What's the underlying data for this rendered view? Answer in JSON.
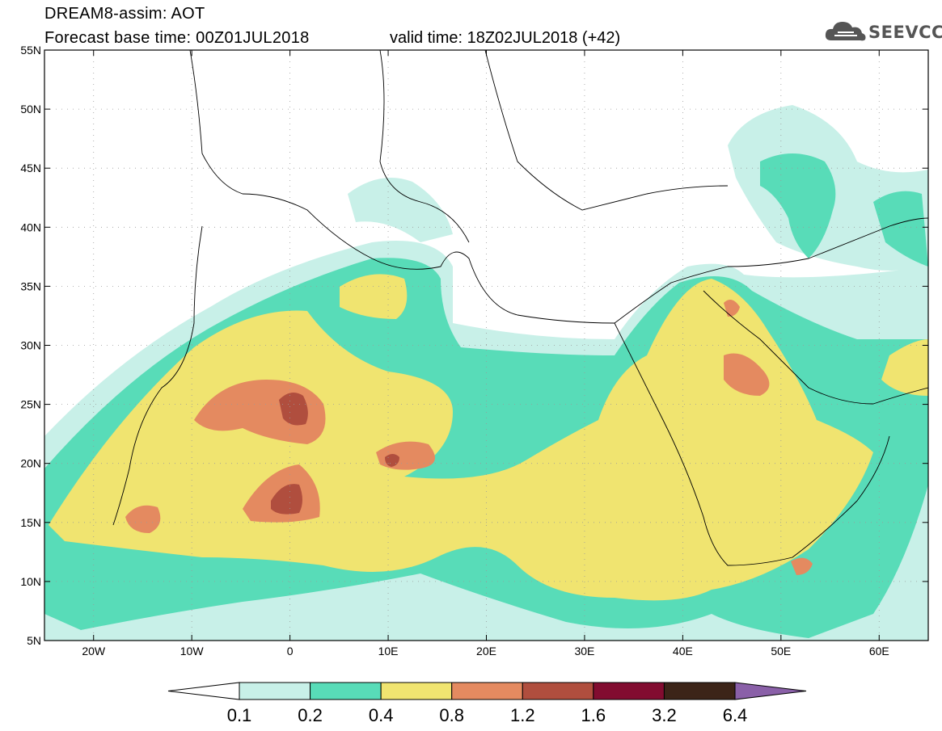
{
  "title": {
    "line1": "DREAM8-assim: AOT",
    "line2": "Forecast base time: 00Z01JUL2018",
    "line3": "valid time: 18Z02JUL2018 (+42)"
  },
  "brand": {
    "name": "SEEVCCC",
    "icon": "cloud-icon"
  },
  "map": {
    "lon_range": [
      -25,
      65
    ],
    "lat_range": [
      5,
      55
    ],
    "lat_ticks": [
      "5N",
      "10N",
      "15N",
      "20N",
      "25N",
      "30N",
      "35N",
      "40N",
      "45N",
      "50N",
      "55N"
    ],
    "lon_ticks": [
      "20W",
      "10W",
      "0",
      "10E",
      "20E",
      "30E",
      "40E",
      "50E",
      "60E"
    ],
    "grid": true
  },
  "colorbar": {
    "labels": [
      "0.1",
      "0.2",
      "0.4",
      "0.8",
      "1.2",
      "1.6",
      "3.2",
      "6.4"
    ],
    "colors": [
      "#ffffff",
      "#c8f0e8",
      "#58dcb8",
      "#f0e470",
      "#e48a60",
      "#b04e3e",
      "#820c30",
      "#3c2418",
      "#8a60a8"
    ]
  }
}
